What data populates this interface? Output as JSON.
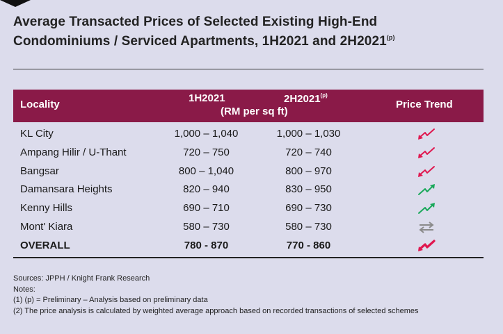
{
  "title": {
    "line1": "Average Transacted Prices of Selected Existing High-End",
    "line2": "Condominiums / Serviced Apartments, 1H2021 and 2H2021",
    "superscript": "(p)"
  },
  "table": {
    "header": {
      "locality": "Locality",
      "col1": "1H2021",
      "col2": "2H2021",
      "col2_sup": "(p)",
      "unit": "(RM per sq ft)",
      "trend": "Price Trend"
    },
    "rows": [
      {
        "locality": "KL City",
        "h1": "1,000 – 1,040",
        "h2": "1,000 – 1,030",
        "trend": "down-trend-icon"
      },
      {
        "locality": "Ampang Hilir / U-Thant",
        "h1": "720 – 750",
        "h2": "720 – 740",
        "trend": "down-trend-icon"
      },
      {
        "locality": "Bangsar",
        "h1": "800 – 1,040",
        "h2": "800 – 970",
        "trend": "down-trend-icon"
      },
      {
        "locality": "Damansara Heights",
        "h1": "820 – 940",
        "h2": "830 – 950",
        "trend": "up-trend-icon"
      },
      {
        "locality": "Kenny Hills",
        "h1": "690 – 710",
        "h2": "690 – 730",
        "trend": "up-trend-icon"
      },
      {
        "locality": "Mont' Kiara",
        "h1": "580 – 730",
        "h2": "580 – 730",
        "trend": "stable-trend-icon"
      },
      {
        "locality": "OVERALL",
        "h1": "780 - 870",
        "h2": "770 - 860",
        "trend": "down-trend-icon"
      }
    ]
  },
  "notes": {
    "sources": "Sources: JPPH / Knight Frank Research",
    "notes_label": "Notes:",
    "note1": "(1)    (p) = Preliminary – Analysis based on preliminary data",
    "note2": "(2)   The price analysis is calculated by weighted average approach based on recorded transactions of selected schemes"
  },
  "colors": {
    "header_bg": "#8a1a48",
    "down": "#e0174f",
    "up": "#1aa85a",
    "stable": "#8a8a8a",
    "background": "#dcdcec"
  }
}
